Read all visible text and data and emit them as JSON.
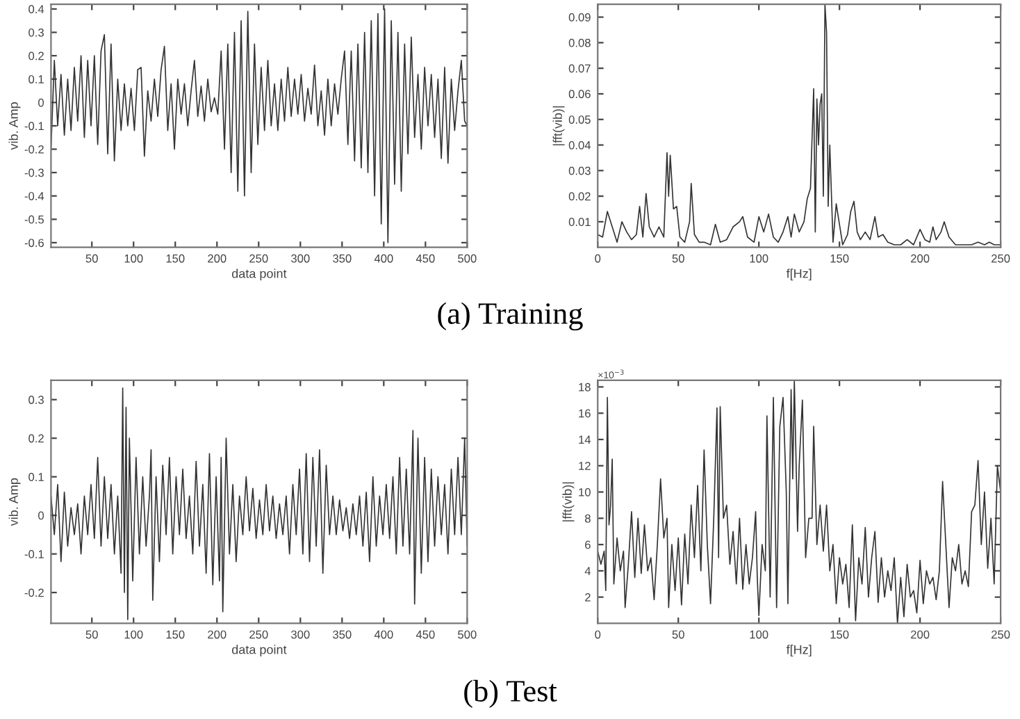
{
  "chart_data": [
    {
      "type": "line",
      "xlabel": "data point",
      "ylabel": "vib. Amp",
      "annotations": [
        "(a) Training"
      ],
      "xlim": [
        1,
        500
      ],
      "xticks": [
        50,
        100,
        150,
        200,
        250,
        300,
        350,
        400,
        450,
        500
      ],
      "ylim": [
        -0.62,
        0.42
      ],
      "yticks": [
        -0.6,
        -0.5,
        -0.4,
        -0.3,
        -0.2,
        -0.1,
        0,
        0.1,
        0.2,
        0.3,
        0.4
      ],
      "series": [
        {
          "color": "#333333",
          "x": [
            1,
            5,
            9,
            13,
            17,
            21,
            25,
            29,
            33,
            37,
            41,
            45,
            49,
            53,
            57,
            61,
            65,
            69,
            73,
            77,
            81,
            85,
            89,
            93,
            97,
            101,
            105,
            109,
            113,
            117,
            121,
            125,
            129,
            133,
            137,
            141,
            145,
            149,
            153,
            157,
            161,
            165,
            169,
            173,
            177,
            181,
            185,
            189,
            193,
            197,
            201,
            205,
            209,
            213,
            217,
            221,
            225,
            229,
            233,
            237,
            241,
            245,
            249,
            253,
            257,
            261,
            265,
            269,
            273,
            277,
            281,
            285,
            289,
            293,
            297,
            301,
            305,
            309,
            313,
            317,
            321,
            325,
            329,
            333,
            337,
            341,
            345,
            349,
            353,
            357,
            361,
            365,
            369,
            373,
            377,
            381,
            385,
            389,
            393,
            397,
            401,
            405,
            409,
            413,
            417,
            421,
            425,
            429,
            433,
            437,
            441,
            445,
            449,
            453,
            457,
            461,
            465,
            469,
            473,
            477,
            481,
            485,
            489,
            493,
            497,
            500
          ],
          "values": [
            -0.2,
            0.18,
            -0.1,
            0.12,
            -0.14,
            0.1,
            -0.12,
            0.15,
            -0.08,
            0.2,
            -0.15,
            0.18,
            -0.1,
            0.2,
            -0.18,
            0.22,
            0.29,
            -0.22,
            0.25,
            -0.25,
            0.1,
            -0.12,
            0.08,
            -0.1,
            0.06,
            -0.12,
            0.14,
            0.15,
            -0.23,
            0.05,
            -0.08,
            0.1,
            -0.06,
            0.14,
            0.24,
            -0.12,
            0.08,
            -0.2,
            0.1,
            -0.05,
            0.08,
            -0.1,
            0.05,
            0.18,
            -0.06,
            0.07,
            -0.08,
            0.1,
            -0.04,
            0.02,
            -0.05,
            0.22,
            -0.2,
            0.25,
            -0.3,
            0.3,
            -0.38,
            0.35,
            -0.4,
            0.39,
            -0.3,
            0.25,
            -0.18,
            0.15,
            -0.12,
            0.18,
            -0.1,
            0.08,
            -0.12,
            0.1,
            -0.08,
            0.15,
            -0.06,
            0.1,
            -0.05,
            0.12,
            -0.08,
            0.06,
            -0.05,
            0.16,
            -0.1,
            0.05,
            -0.14,
            0.1,
            -0.1,
            0.08,
            -0.05,
            0.1,
            0.22,
            -0.18,
            0.22,
            -0.25,
            0.25,
            -0.28,
            0.3,
            -0.3,
            0.35,
            -0.4,
            0.38,
            -0.52,
            0.4,
            -0.6,
            0.35,
            -0.35,
            0.3,
            -0.38,
            0.25,
            -0.22,
            0.28,
            -0.15,
            0.12,
            -0.2,
            0.15,
            -0.1,
            0.12,
            -0.15,
            0.1,
            -0.24,
            0.15,
            -0.26,
            0.1,
            -0.12,
            0.05,
            0.18,
            -0.08,
            -0.1
          ]
        }
      ]
    },
    {
      "type": "line",
      "xlabel": "f[Hz]",
      "ylabel": "|fft(vib)|",
      "xlim": [
        0,
        250
      ],
      "xticks": [
        0,
        50,
        100,
        150,
        200,
        250
      ],
      "ylim": [
        0,
        0.095
      ],
      "yticks": [
        0.01,
        0.02,
        0.03,
        0.04,
        0.05,
        0.06,
        0.07,
        0.08,
        0.09
      ],
      "series": [
        {
          "color": "#333333",
          "x": [
            0,
            3,
            6,
            9,
            12,
            15,
            18,
            21,
            24,
            26,
            28,
            30,
            32,
            35,
            38,
            41,
            43,
            44,
            45,
            47,
            49,
            51,
            54,
            57,
            58,
            60,
            63,
            66,
            70,
            73,
            76,
            80,
            84,
            88,
            90,
            93,
            97,
            100,
            103,
            106,
            109,
            112,
            115,
            118,
            120,
            122,
            125,
            128,
            130,
            132,
            134,
            135,
            136,
            137,
            138,
            139,
            140,
            141,
            142,
            143,
            144,
            146,
            148,
            150,
            152,
            155,
            157,
            159,
            161,
            163,
            166,
            169,
            172,
            174,
            177,
            180,
            184,
            188,
            192,
            196,
            200,
            203,
            206,
            208,
            210,
            213,
            215,
            218,
            222,
            227,
            232,
            236,
            240,
            243,
            246,
            250
          ],
          "values": [
            0.005,
            0.004,
            0.014,
            0.008,
            0.002,
            0.01,
            0.006,
            0.003,
            0.005,
            0.016,
            0.004,
            0.021,
            0.008,
            0.004,
            0.008,
            0.004,
            0.037,
            0.02,
            0.036,
            0.015,
            0.016,
            0.004,
            0.002,
            0.01,
            0.025,
            0.005,
            0.002,
            0.002,
            0.001,
            0.009,
            0.002,
            0.003,
            0.008,
            0.01,
            0.012,
            0.004,
            0.002,
            0.012,
            0.006,
            0.013,
            0.004,
            0.002,
            0.006,
            0.012,
            0.004,
            0.013,
            0.006,
            0.01,
            0.019,
            0.023,
            0.062,
            0.006,
            0.058,
            0.04,
            0.056,
            0.06,
            0.02,
            0.095,
            0.084,
            0.016,
            0.04,
            0.002,
            0.017,
            0.009,
            0.001,
            0.005,
            0.014,
            0.018,
            0.006,
            0.003,
            0.006,
            0.003,
            0.012,
            0.004,
            0.005,
            0.002,
            0.001,
            0.001,
            0.003,
            0.001,
            0.007,
            0.003,
            0.002,
            0.008,
            0.003,
            0.006,
            0.01,
            0.004,
            0.001,
            0.001,
            0.001,
            0.002,
            0.001,
            0.002,
            0.001,
            0.001
          ]
        }
      ]
    },
    {
      "type": "line",
      "xlabel": "data point",
      "ylabel": "vib. Amp",
      "annotations": [
        "(b) Test"
      ],
      "xlim": [
        1,
        500
      ],
      "xticks": [
        50,
        100,
        150,
        200,
        250,
        300,
        350,
        400,
        450,
        500
      ],
      "ylim": [
        -0.28,
        0.35
      ],
      "yticks": [
        -0.2,
        -0.1,
        0,
        0.1,
        0.2,
        0.3
      ],
      "series": [
        {
          "color": "#333333",
          "x": [
            1,
            5,
            9,
            13,
            17,
            21,
            25,
            29,
            33,
            37,
            41,
            45,
            49,
            53,
            57,
            61,
            65,
            69,
            73,
            77,
            81,
            85,
            87,
            89,
            91,
            93,
            95,
            99,
            103,
            107,
            111,
            115,
            119,
            121,
            123,
            127,
            131,
            135,
            139,
            143,
            147,
            151,
            155,
            159,
            163,
            167,
            171,
            175,
            179,
            183,
            187,
            191,
            195,
            199,
            203,
            205,
            207,
            211,
            215,
            219,
            223,
            227,
            231,
            235,
            239,
            243,
            247,
            251,
            255,
            259,
            263,
            267,
            271,
            275,
            279,
            283,
            287,
            291,
            295,
            299,
            303,
            307,
            311,
            315,
            319,
            323,
            327,
            331,
            335,
            339,
            343,
            347,
            351,
            355,
            359,
            363,
            367,
            371,
            375,
            379,
            383,
            387,
            391,
            395,
            399,
            403,
            407,
            411,
            415,
            419,
            423,
            427,
            431,
            435,
            437,
            441,
            445,
            449,
            453,
            457,
            461,
            465,
            469,
            473,
            477,
            481,
            485,
            489,
            493,
            497,
            500
          ],
          "values": [
            0.05,
            -0.05,
            0.08,
            -0.12,
            0.06,
            -0.08,
            0.02,
            -0.05,
            0.03,
            -0.1,
            0.05,
            -0.05,
            0.08,
            -0.06,
            0.15,
            -0.08,
            0.1,
            -0.06,
            0.08,
            -0.1,
            0.05,
            -0.15,
            0.33,
            -0.2,
            0.28,
            -0.27,
            0.2,
            -0.17,
            0.15,
            -0.1,
            0.1,
            -0.08,
            0.05,
            0.17,
            -0.22,
            0.1,
            -0.12,
            0.13,
            -0.05,
            0.15,
            -0.1,
            0.1,
            -0.05,
            0.12,
            -0.06,
            0.05,
            -0.1,
            0.14,
            -0.08,
            0.08,
            -0.15,
            0.16,
            -0.18,
            0.1,
            -0.17,
            0.15,
            -0.25,
            0.2,
            -0.1,
            0.08,
            -0.12,
            0.05,
            -0.05,
            0.1,
            -0.04,
            0.07,
            -0.06,
            0.04,
            -0.05,
            0.08,
            -0.04,
            0.05,
            -0.06,
            0.03,
            -0.05,
            0.05,
            -0.1,
            0.08,
            -0.05,
            0.12,
            -0.1,
            0.16,
            -0.12,
            0.15,
            -0.08,
            0.17,
            -0.15,
            0.13,
            -0.05,
            0.05,
            -0.05,
            0.04,
            -0.04,
            0.02,
            -0.06,
            0.03,
            -0.05,
            0.05,
            -0.08,
            0.06,
            -0.12,
            0.1,
            -0.08,
            0.05,
            -0.05,
            0.08,
            -0.06,
            0.1,
            -0.1,
            0.15,
            -0.08,
            0.12,
            -0.1,
            0.22,
            -0.23,
            0.2,
            -0.15,
            0.15,
            -0.12,
            0.12,
            -0.08,
            0.1,
            -0.05,
            0.08,
            -0.1,
            0.12,
            -0.05,
            0.15,
            -0.05,
            0.2,
            -0.08
          ]
        }
      ]
    },
    {
      "type": "line",
      "xlabel": "f[Hz]",
      "ylabel": "|fft(vib)|",
      "annotations": [
        "×10$^{−3}$"
      ],
      "xlim": [
        0,
        250
      ],
      "xticks": [
        0,
        50,
        100,
        150,
        200,
        250
      ],
      "ylim": [
        0,
        18.5
      ],
      "yticks": [
        2,
        4,
        6,
        8,
        10,
        12,
        14,
        16,
        18
      ],
      "series": [
        {
          "color": "#333333",
          "x": [
            0,
            2,
            4,
            5,
            6,
            7,
            8,
            9,
            10,
            12,
            14,
            16,
            17,
            19,
            21,
            23,
            25,
            27,
            29,
            31,
            33,
            35,
            37,
            39,
            41,
            43,
            44,
            46,
            48,
            50,
            52,
            54,
            56,
            58,
            60,
            62,
            64,
            66,
            68,
            70,
            72,
            74,
            75,
            76,
            78,
            80,
            82,
            84,
            86,
            88,
            90,
            92,
            94,
            96,
            98,
            99,
            100,
            102,
            104,
            105,
            107,
            109,
            111,
            113,
            115,
            117,
            118,
            120,
            121,
            122,
            124,
            125,
            127,
            129,
            131,
            133,
            134,
            136,
            138,
            140,
            142,
            144,
            146,
            148,
            150,
            152,
            154,
            156,
            158,
            160,
            162,
            164,
            166,
            168,
            170,
            172,
            174,
            176,
            178,
            180,
            182,
            184,
            186,
            188,
            190,
            192,
            194,
            196,
            198,
            200,
            202,
            204,
            206,
            208,
            210,
            212,
            214,
            216,
            218,
            220,
            222,
            224,
            226,
            228,
            230,
            232,
            234,
            236,
            238,
            240,
            242,
            244,
            246,
            248,
            250
          ],
          "values": [
            5.5,
            4.5,
            5.5,
            2.5,
            17.2,
            7.5,
            9,
            12.5,
            3,
            6.5,
            4,
            5.5,
            1.2,
            4.5,
            8.5,
            3.5,
            8,
            3.8,
            7.5,
            4,
            5,
            1.8,
            6,
            11,
            6.5,
            8,
            1.2,
            6,
            2.5,
            6.5,
            1.4,
            6.8,
            3,
            9,
            5,
            10.5,
            4,
            13.2,
            6,
            1.5,
            8,
            16.4,
            5,
            16.5,
            8,
            9,
            4.5,
            7,
            3,
            8,
            2.6,
            6,
            3,
            5,
            8.5,
            3.5,
            0.6,
            6,
            4,
            15.8,
            2,
            17.2,
            1.2,
            15,
            17.2,
            10,
            1.5,
            17.8,
            11,
            18.5,
            7,
            12,
            17,
            5,
            8,
            8,
            15,
            6,
            9,
            5.5,
            9,
            4,
            6,
            1.5,
            5,
            3,
            4.5,
            1.2,
            7.5,
            0.2,
            5,
            3,
            7.3,
            2,
            5,
            7,
            1.6,
            5,
            2,
            4,
            2.5,
            5,
            0,
            3.5,
            0.5,
            4.5,
            2,
            2.5,
            0.8,
            4.8,
            1.5,
            4,
            3,
            3.5,
            1.8,
            4,
            10.8,
            6,
            1.2,
            5,
            4,
            6,
            3,
            4,
            2.8,
            8.5,
            9,
            12.4,
            6,
            10,
            4.2,
            8,
            3,
            12,
            10
          ]
        }
      ]
    }
  ]
}
